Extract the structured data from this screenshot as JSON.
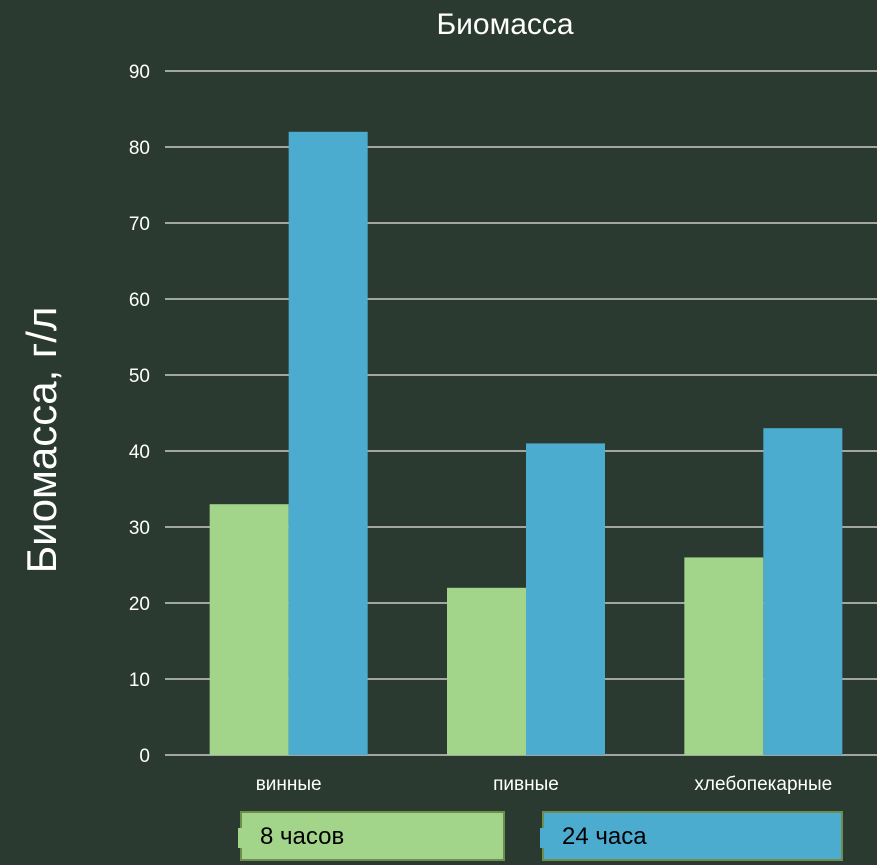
{
  "chart_data": {
    "type": "bar",
    "title": "Биомасса",
    "ylabel": "Биомасса, г/л",
    "xlabel": "",
    "categories": [
      "винные",
      "пивные",
      "хлебопекарные"
    ],
    "series": [
      {
        "name": "8 часов",
        "values": [
          33,
          22,
          26
        ],
        "color": "#a2d48a"
      },
      {
        "name": "24 часа",
        "values": [
          82,
          41,
          43
        ],
        "color": "#4bacd0"
      }
    ],
    "ylim": [
      0,
      90
    ],
    "yticks": [
      "0",
      "10",
      "20",
      "30",
      "40",
      "50",
      "60",
      "70",
      "80",
      "90"
    ],
    "grid": true,
    "legend_position": "bottom"
  }
}
